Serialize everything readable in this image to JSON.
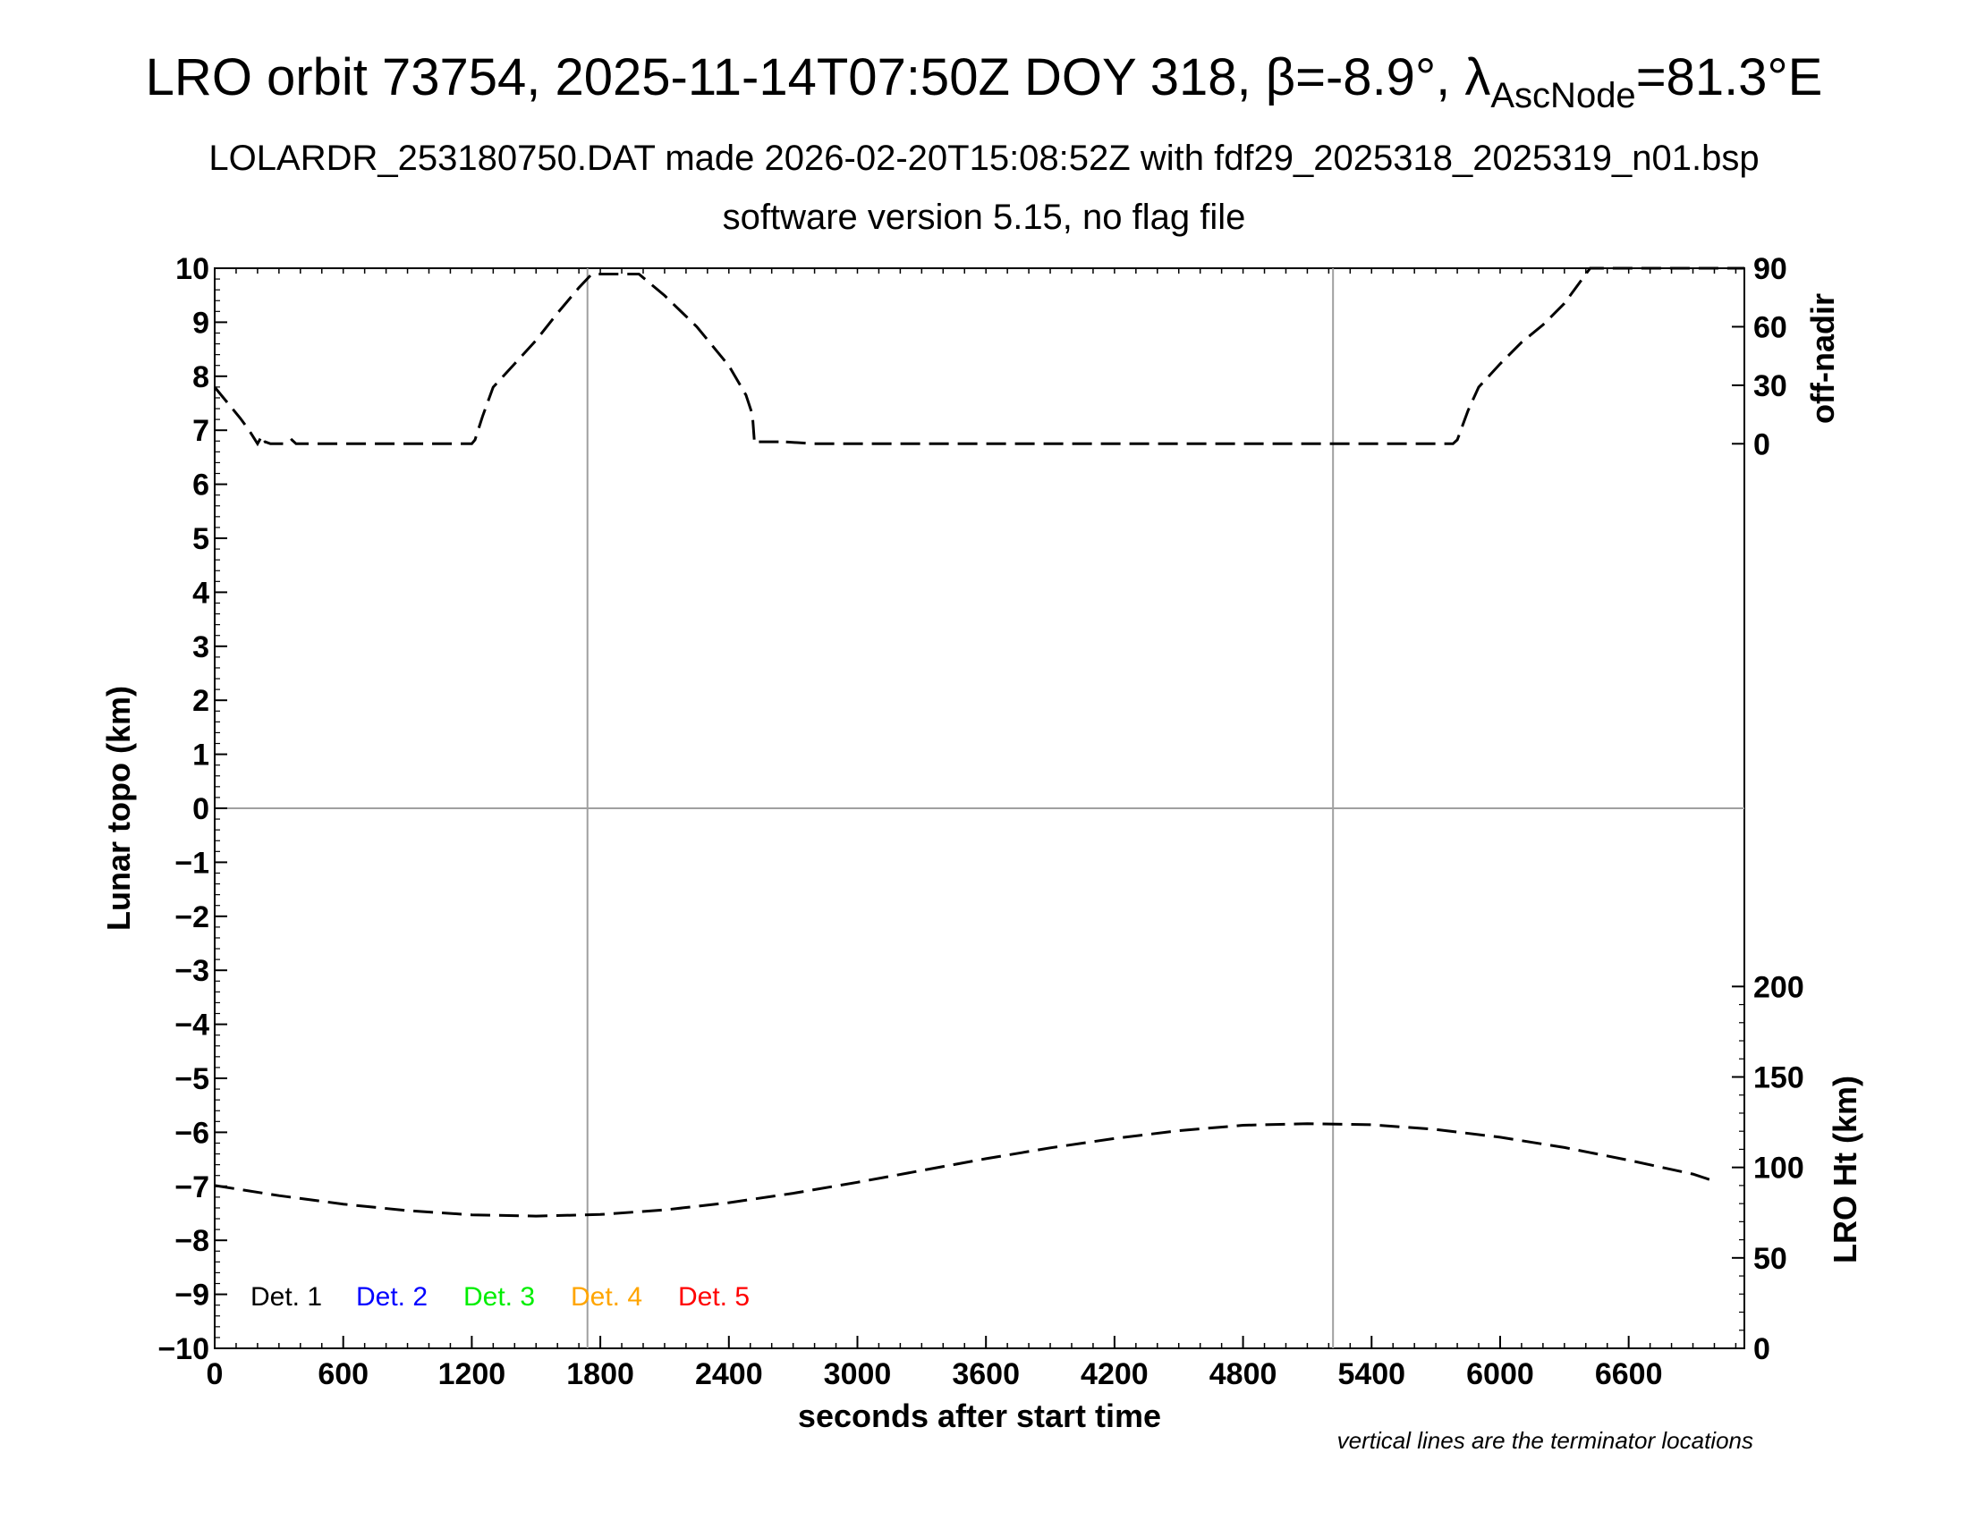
{
  "chart_data": {
    "type": "line",
    "title_parts": {
      "prefix": "LRO orbit 73754, 2025-11-14T07:50Z DOY 318, ",
      "beta_symbol": "β",
      "beta_value": "=-8.9°, ",
      "lambda_symbol": "λ",
      "lambda_subscript": "AscNode",
      "lambda_value": "=81.3°E"
    },
    "subtitle1": "LOLARDR_253180750.DAT made 2026-02-20T15:08:52Z with fdf29_2025318_2025319_n01.bsp",
    "subtitle2": "software version 5.15, no flag file",
    "xlabel": "seconds after start time",
    "ylabel_left": "Lunar topo (km)",
    "ylabel_right_top": "off-nadir",
    "ylabel_right_bottom": "LRO Ht (km)",
    "note": "vertical lines are the terminator locations",
    "xlim": [
      0,
      7140
    ],
    "ylim_left": [
      -10,
      10
    ],
    "x_ticks": [
      0,
      600,
      1200,
      1800,
      2400,
      3000,
      3600,
      4200,
      4800,
      5400,
      6000,
      6600
    ],
    "x_tick_labels": [
      "0",
      "600",
      "1200",
      "1800",
      "2400",
      "3000",
      "3600",
      "4200",
      "4800",
      "5400",
      "6000",
      "6600"
    ],
    "y_ticks_left": [
      10,
      9,
      8,
      7,
      6,
      5,
      4,
      3,
      2,
      1,
      0,
      -1,
      -2,
      -3,
      -4,
      -5,
      -6,
      -7,
      -8,
      -9,
      -10
    ],
    "y_tick_labels_left": [
      "10",
      "9",
      "8",
      "7",
      "6",
      "5",
      "4",
      "3",
      "2",
      "1",
      "0",
      "−1",
      "−2",
      "−3",
      "−4",
      "−5",
      "−6",
      "−7",
      "−8",
      "−9",
      "−10"
    ],
    "offnadir_axis": {
      "ticks": [
        0,
        30,
        60,
        90
      ],
      "labels": [
        "0",
        "30",
        "60",
        "90"
      ]
    },
    "height_axis": {
      "ticks": [
        0,
        50,
        100,
        150,
        200
      ],
      "labels": [
        "0",
        "50",
        "100",
        "150",
        "200"
      ],
      "range": [
        0,
        300
      ]
    },
    "terminators": [
      1740,
      5220
    ],
    "zero_line": 0,
    "series": [
      {
        "name": "off-nadir angle",
        "axis": "offnadir",
        "style": "dashed",
        "x": [
          0,
          60,
          120,
          160,
          200,
          215,
          222,
          235,
          260,
          300,
          340,
          360,
          380,
          400,
          600,
          900,
          1150,
          1200,
          1215,
          1250,
          1300,
          1400,
          1500,
          1600,
          1700,
          1760,
          1800,
          1900,
          1980,
          2100,
          2250,
          2400,
          2480,
          2510,
          2520,
          2540,
          2600,
          2640,
          2650,
          2660,
          2800,
          3200,
          4000,
          4800,
          5400,
          5760,
          5780,
          5800,
          5850,
          5900,
          6000,
          6100,
          6200,
          6300,
          6420,
          6450,
          6800,
          7140
        ],
        "y": [
          29,
          21,
          13,
          7,
          0,
          3,
          0,
          1,
          0,
          0,
          0,
          2,
          0,
          0,
          0,
          0,
          0,
          0,
          2,
          14,
          29,
          41,
          53,
          67,
          80,
          87,
          87,
          87,
          87,
          76,
          60,
          40,
          25,
          15,
          0,
          1,
          1,
          1,
          2,
          1,
          0,
          0,
          0,
          0,
          0,
          0,
          0,
          2,
          17,
          29,
          41,
          52,
          61,
          72,
          90,
          90,
          90,
          90
        ]
      },
      {
        "name": "LRO Ht",
        "axis": "height",
        "style": "dashed",
        "x": [
          0,
          300,
          600,
          900,
          1200,
          1500,
          1800,
          2100,
          2400,
          2700,
          3000,
          3300,
          3600,
          3900,
          4200,
          4500,
          4800,
          5100,
          5400,
          5700,
          6000,
          6300,
          6600,
          6900,
          7000
        ],
        "y": [
          90,
          84.4,
          79.7,
          76.1,
          73.8,
          73.1,
          74.0,
          76.5,
          80.5,
          85.7,
          91.8,
          98.3,
          104.8,
          110.8,
          116.0,
          120.3,
          123.3,
          124.2,
          123.6,
          121.0,
          116.7,
          111.0,
          104.0,
          96.3,
          92.4
        ]
      }
    ],
    "legend": [
      {
        "label": "Det. 1",
        "color": "#000000"
      },
      {
        "label": "Det. 2",
        "color": "#0000ff"
      },
      {
        "label": "Det. 3",
        "color": "#00ee00"
      },
      {
        "label": "Det. 4",
        "color": "#ffa500"
      },
      {
        "label": "Det. 5",
        "color": "#ff0000"
      }
    ]
  }
}
